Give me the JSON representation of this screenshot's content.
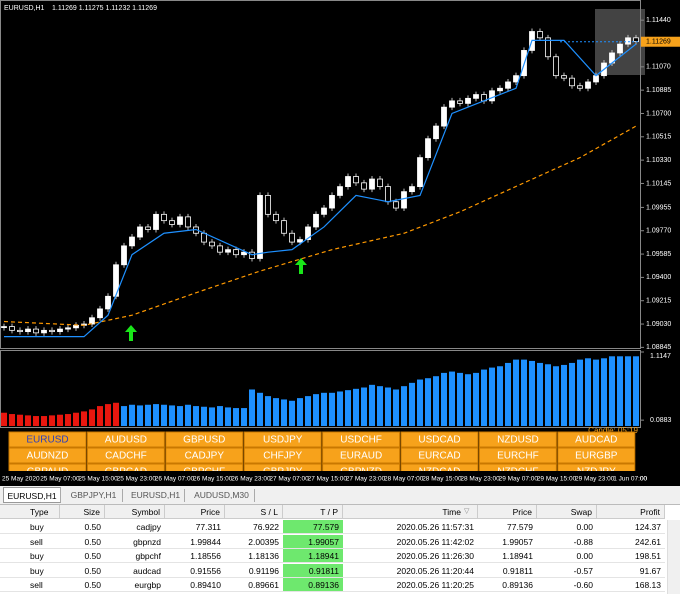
{
  "header": {
    "symbol": "EURUSD,H1",
    "ohlc": "1.11269 1.11275 1.11232 1.11269"
  },
  "chart_data": [
    {
      "type": "candlestick",
      "closes": [
        1.0901,
        1.0898,
        1.0897,
        1.0899,
        1.0896,
        1.0898,
        1.0897,
        1.0899,
        1.09,
        1.0902,
        1.0903,
        1.0908,
        1.0915,
        1.0925,
        1.095,
        1.0965,
        1.0972,
        1.098,
        1.0978,
        1.099,
        1.0985,
        1.0982,
        1.0988,
        1.098,
        1.0975,
        1.0968,
        1.0965,
        1.096,
        1.0962,
        1.0958,
        1.096,
        1.0955,
        1.1005,
        1.099,
        1.0985,
        1.0975,
        1.0968,
        1.097,
        1.098,
        1.099,
        1.0995,
        1.1005,
        1.1012,
        1.102,
        1.1015,
        1.101,
        1.1018,
        1.1012,
        1.1,
        1.0995,
        1.1008,
        1.1012,
        1.1035,
        1.105,
        1.106,
        1.1075,
        1.108,
        1.1078,
        1.1082,
        1.1085,
        1.108,
        1.1088,
        1.109,
        1.1095,
        1.11,
        1.112,
        1.1135,
        1.113,
        1.1115,
        1.11,
        1.1098,
        1.1092,
        1.109,
        1.1095,
        1.11,
        1.111,
        1.1118,
        1.1125,
        1.113,
        1.1127
      ],
      "color": "#ffffff",
      "overlays": [
        {
          "color": "#ff9900",
          "x": [
            0,
            10,
            16,
            25,
            32,
            41,
            50,
            57,
            65,
            72,
            79
          ],
          "values": [
            1.0905,
            1.0902,
            1.091,
            1.093,
            1.0945,
            1.0962,
            1.0975,
            1.0992,
            1.1015,
            1.1035,
            1.106
          ],
          "dashed": true
        },
        {
          "color": "#1e90ff",
          "x": [
            0,
            10,
            13,
            16,
            20,
            24,
            31,
            33,
            36,
            40,
            44,
            48,
            52,
            56,
            60,
            64,
            66,
            70,
            74,
            79
          ],
          "values": [
            1.0893,
            1.0893,
            1.091,
            1.0958,
            1.0975,
            1.0978,
            1.0958,
            1.096,
            1.0962,
            1.098,
            1.1005,
            1.1,
            1.1005,
            1.107,
            1.108,
            1.109,
            1.1128,
            1.1128,
            1.11,
            1.1125
          ],
          "dashed": false
        }
      ],
      "ylim": [
        1.0884,
        1.116
      ],
      "yticks": [
        {
          "value": 1.1144,
          "label": "1.11440"
        },
        {
          "value": 1.1107,
          "label": "1.11070"
        },
        1.10885,
        {
          "value": 1.107,
          "label": "1.10700"
        },
        1.10515,
        {
          "value": 1.1033,
          "label": "1.10330"
        },
        1.10145,
        1.09955,
        {
          "value": 1.0977,
          "label": "1.09770"
        },
        1.09585,
        {
          "value": 1.094,
          "label": "1.09400"
        },
        1.09215,
        {
          "value": 1.0903,
          "label": "1.09030"
        },
        1.08845
      ],
      "current_price": 1.11269,
      "x_labels": [
        "25 May 2020",
        "25 May 07:00",
        "25 May 15:00",
        "25 May 23:00",
        "26 May 07:00",
        "26 May 15:00",
        "26 May 23:00",
        "27 May 07:00",
        "27 May 15:00",
        "27 May 23:00",
        "28 May 07:00",
        "28 May 15:00",
        "28 May 23:00",
        "29 May 07:00",
        "29 May 15:00",
        "29 May 23:00",
        "1 Jun 07:00"
      ]
    },
    {
      "type": "bar",
      "series": [
        {
          "color": "#e8170f",
          "values": [
            0.2,
            0.18,
            0.17,
            0.16,
            0.15,
            0.15,
            0.16,
            0.17,
            0.18,
            0.2,
            0.22,
            0.25,
            0.3,
            0.33,
            0.35,
            null,
            null,
            null,
            null,
            null,
            null,
            null,
            null,
            null,
            null,
            null,
            null,
            null,
            null,
            null,
            null,
            null,
            null,
            null,
            null,
            null,
            null,
            null,
            null,
            null,
            null,
            null,
            null,
            null,
            null,
            null,
            null,
            null,
            null,
            null,
            null,
            null,
            null,
            null,
            null,
            null,
            null,
            null,
            null,
            null,
            null,
            null,
            null,
            null,
            null,
            null,
            null,
            null,
            null,
            null,
            null,
            null,
            null,
            null,
            null,
            null,
            null,
            null,
            null,
            null
          ]
        },
        {
          "color": "#1e90ff",
          "values": [
            null,
            null,
            null,
            null,
            null,
            null,
            null,
            null,
            null,
            null,
            null,
            null,
            null,
            null,
            null,
            0.3,
            0.32,
            0.31,
            0.32,
            0.33,
            0.32,
            0.31,
            0.3,
            0.32,
            0.3,
            0.29,
            0.28,
            0.3,
            0.28,
            0.27,
            0.27,
            0.55,
            0.5,
            0.45,
            0.42,
            0.4,
            0.38,
            0.42,
            0.45,
            0.48,
            0.5,
            0.5,
            0.52,
            0.54,
            0.56,
            0.58,
            0.62,
            0.6,
            0.58,
            0.55,
            0.6,
            0.65,
            0.7,
            0.72,
            0.75,
            0.8,
            0.82,
            0.8,
            0.78,
            0.8,
            0.85,
            0.88,
            0.9,
            0.95,
            1.0,
            1.0,
            0.98,
            0.95,
            0.93,
            0.9,
            0.92,
            0.95,
            1.0,
            1.02,
            1.0,
            1.02,
            1.05,
            1.05,
            1.05,
            1.05
          ]
        }
      ],
      "ylim": [
        0,
        1.1147
      ],
      "yticks": [
        1.1147,
        0.0883
      ],
      "annotation": "Candle: 05:19"
    }
  ],
  "symbols": [
    [
      "EURUSD",
      "AUDUSD",
      "GBPUSD",
      "USDJPY",
      "USDCHF",
      "USDCAD",
      "NZDUSD",
      "AUDCAD"
    ],
    [
      "AUDNZD",
      "CADCHF",
      "CADJPY",
      "CHFJPY",
      "EURAUD",
      "EURCAD",
      "EURCHF",
      "EURGBP"
    ],
    [
      "GBPAUD",
      "GBPCAD",
      "GBPCHF",
      "GBPJPY",
      "GBPNZD",
      "NZDCAD",
      "NZDCHF",
      "NZDJPY"
    ]
  ],
  "tabs": [
    "EURUSD,H1",
    "GBPJPY,H1",
    "EURUSD,H1",
    "AUDUSD,M30"
  ],
  "table": {
    "columns": [
      "Type",
      "Size",
      "Symbol",
      "Price",
      "S / L",
      "T / P",
      "Time",
      "Price",
      "Swap",
      "Profit"
    ],
    "rows": [
      [
        "buy",
        "0.50",
        "cadjpy",
        "77.311",
        "76.922",
        "77.579",
        "2020.05.26 11:57:31",
        "77.579",
        "0.00",
        "124.37"
      ],
      [
        "sell",
        "0.50",
        "gbpnzd",
        "1.99844",
        "2.00395",
        "1.99057",
        "2020.05.26 11:42:02",
        "1.99057",
        "-0.88",
        "242.61"
      ],
      [
        "buy",
        "0.50",
        "gbpchf",
        "1.18556",
        "1.18136",
        "1.18941",
        "2020.05.26 11:26:30",
        "1.18941",
        "0.00",
        "198.51"
      ],
      [
        "buy",
        "0.50",
        "audcad",
        "0.91556",
        "0.91196",
        "0.91811",
        "2020.05.26 11:20:44",
        "0.91811",
        "-0.57",
        "91.67"
      ],
      [
        "sell",
        "0.50",
        "eurgbp",
        "0.89410",
        "0.89661",
        "0.89136",
        "2020.05.26 11:20:25",
        "0.89136",
        "-0.60",
        "168.13"
      ]
    ]
  }
}
